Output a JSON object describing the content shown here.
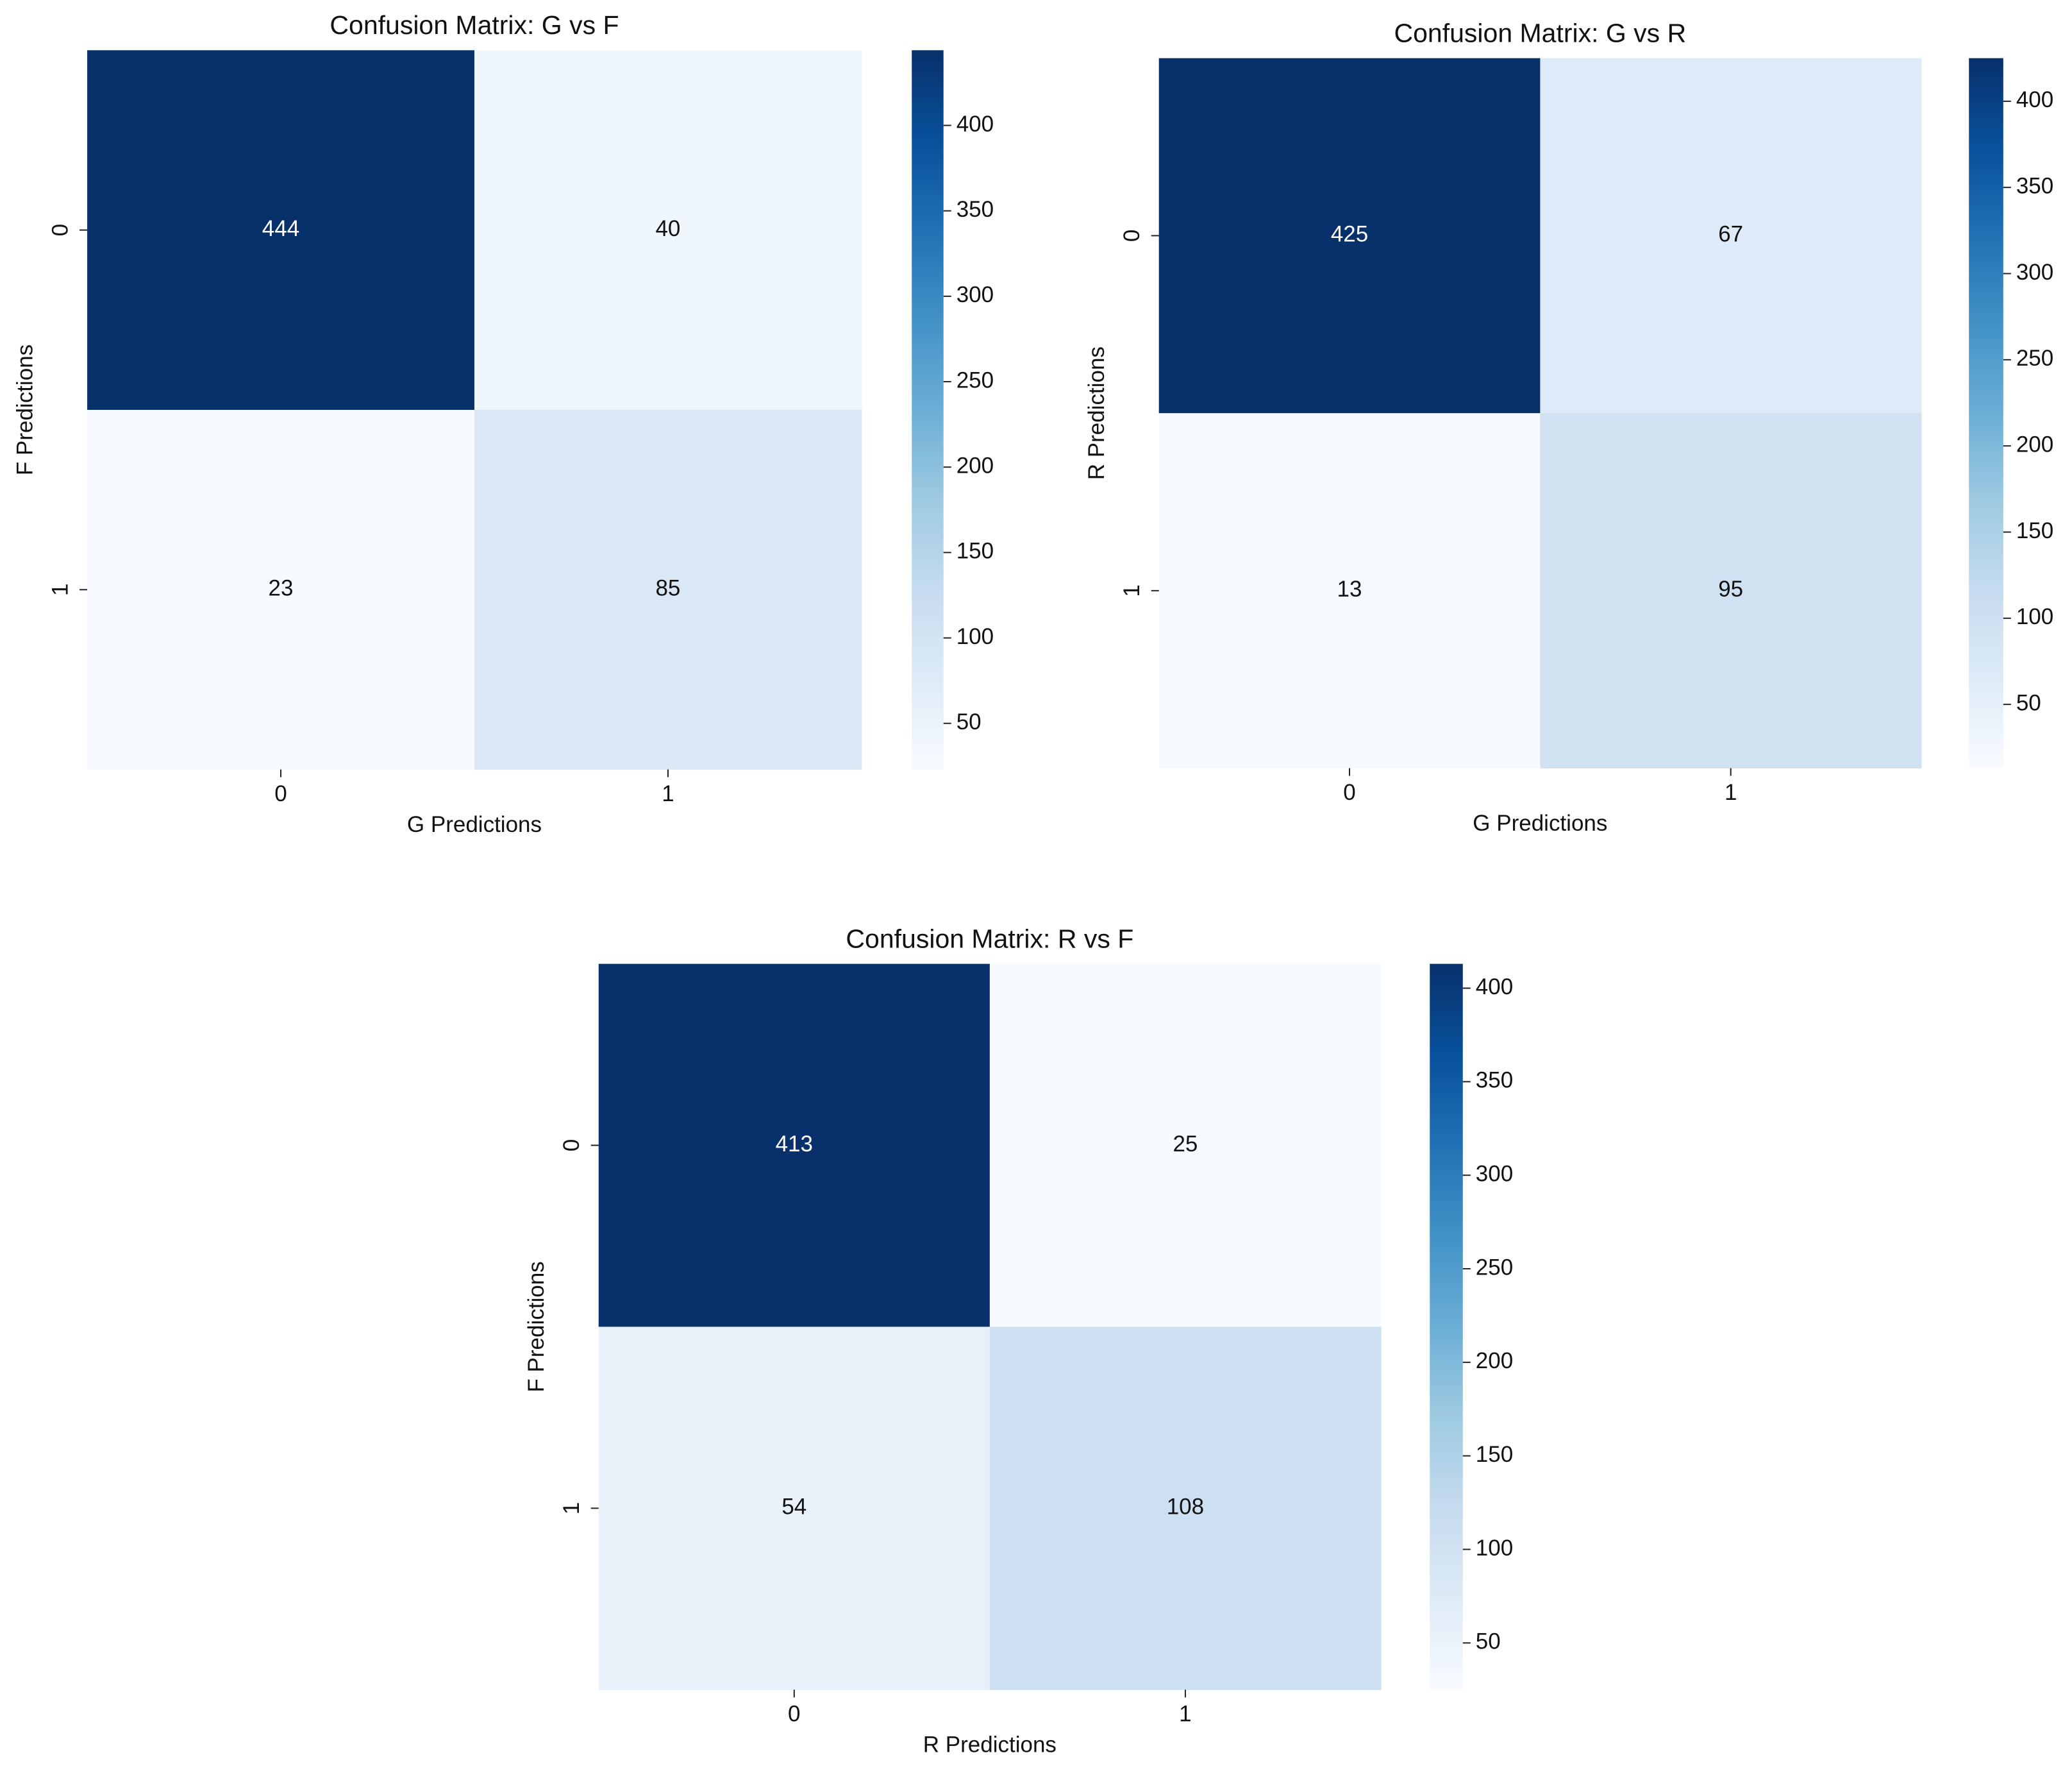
{
  "chart_data": [
    {
      "type": "heatmap",
      "title": "Confusion Matrix: G vs F",
      "x_label": "G Predictions",
      "y_label": "F Predictions",
      "x_categories": [
        "0",
        "1"
      ],
      "y_categories": [
        "0",
        "1"
      ],
      "values": [
        [
          444,
          40
        ],
        [
          23,
          85
        ]
      ],
      "zlim": [
        23,
        444
      ],
      "zticks": [
        50,
        100,
        150,
        200,
        250,
        300,
        350,
        400
      ],
      "colormap": [
        "#f7fbff",
        "#deebf7",
        "#c6dbef",
        "#9ecae1",
        "#6baed6",
        "#4292c6",
        "#2171b5",
        "#08519c",
        "#08306b"
      ]
    },
    {
      "type": "heatmap",
      "title": "Confusion Matrix: G vs R",
      "x_label": "G Predictions",
      "y_label": "R Predictions",
      "x_categories": [
        "0",
        "1"
      ],
      "y_categories": [
        "0",
        "1"
      ],
      "values": [
        [
          425,
          67
        ],
        [
          13,
          95
        ]
      ],
      "zlim": [
        13,
        425
      ],
      "zticks": [
        50,
        100,
        150,
        200,
        250,
        300,
        350,
        400
      ],
      "colormap": [
        "#f7fbff",
        "#deebf7",
        "#c6dbef",
        "#9ecae1",
        "#6baed6",
        "#4292c6",
        "#2171b5",
        "#08519c",
        "#08306b"
      ]
    },
    {
      "type": "heatmap",
      "title": "Confusion Matrix: R vs F",
      "x_label": "R Predictions",
      "y_label": "F Predictions",
      "x_categories": [
        "0",
        "1"
      ],
      "y_categories": [
        "0",
        "1"
      ],
      "values": [
        [
          413,
          25
        ],
        [
          54,
          108
        ]
      ],
      "zlim": [
        25,
        413
      ],
      "zticks": [
        50,
        100,
        150,
        200,
        250,
        300,
        350,
        400
      ],
      "colormap": [
        "#f7fbff",
        "#deebf7",
        "#c6dbef",
        "#9ecae1",
        "#6baed6",
        "#4292c6",
        "#2171b5",
        "#08519c",
        "#08306b"
      ]
    }
  ]
}
